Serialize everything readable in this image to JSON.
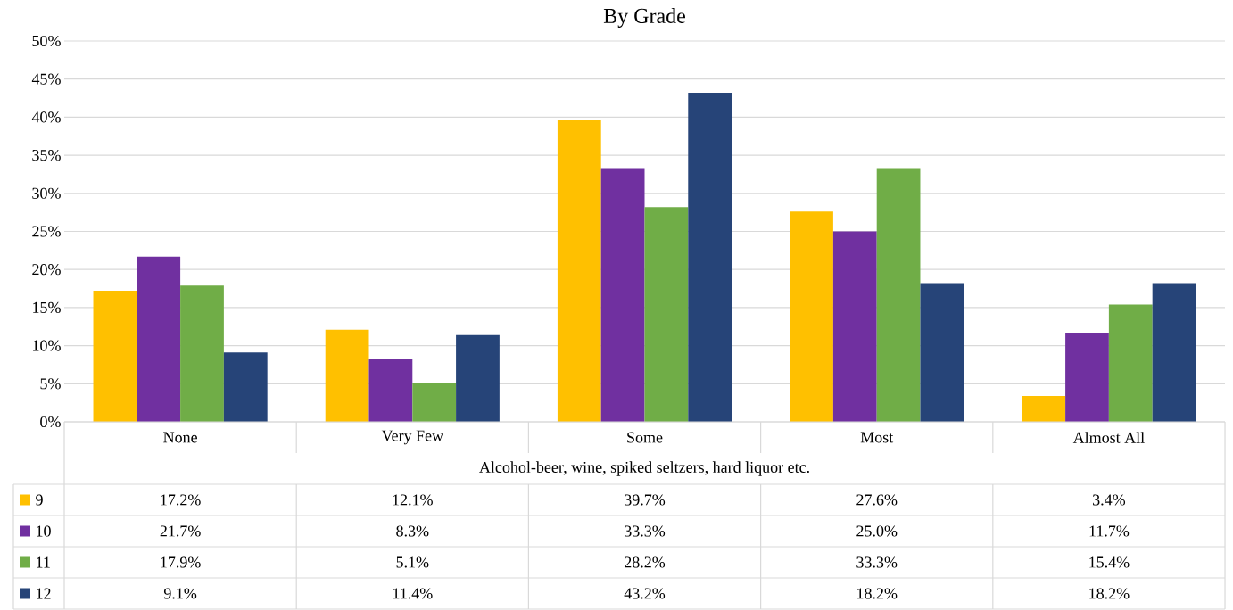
{
  "chart_data": {
    "type": "bar",
    "title": "By Grade",
    "xlabel": "Alcohol-beer, wine, spiked seltzers, hard liquor etc.",
    "categories": [
      "None",
      "Very Few",
      "Some",
      "Most",
      "Almost All"
    ],
    "series": [
      {
        "name": "9",
        "color": "#ffc000",
        "values": [
          17.2,
          12.1,
          39.7,
          27.6,
          3.4
        ],
        "value_labels": [
          "17.2%",
          "12.1%",
          "39.7%",
          "27.6%",
          "3.4%"
        ]
      },
      {
        "name": "10",
        "color": "#7030a0",
        "values": [
          21.7,
          8.3,
          33.3,
          25.0,
          11.7
        ],
        "value_labels": [
          "21.7%",
          "8.3%",
          "33.3%",
          "25.0%",
          "11.7%"
        ]
      },
      {
        "name": "11",
        "color": "#70ad47",
        "values": [
          17.9,
          5.1,
          28.2,
          33.3,
          15.4
        ],
        "value_labels": [
          "17.9%",
          "5.1%",
          "28.2%",
          "33.3%",
          "15.4%"
        ]
      },
      {
        "name": "12",
        "color": "#264478",
        "values": [
          9.1,
          11.4,
          43.2,
          18.2,
          18.2
        ],
        "value_labels": [
          "9.1%",
          "11.4%",
          "43.2%",
          "18.2%",
          "18.2%"
        ]
      }
    ],
    "ylim": [
      0,
      50
    ],
    "yticks": [
      {
        "value": 0,
        "label": "0%"
      },
      {
        "value": 5,
        "label": "5%"
      },
      {
        "value": 10,
        "label": "10%"
      },
      {
        "value": 15,
        "label": "15%"
      },
      {
        "value": 20,
        "label": "20%"
      },
      {
        "value": 25,
        "label": "25%"
      },
      {
        "value": 30,
        "label": "30%"
      },
      {
        "value": 35,
        "label": "35%"
      },
      {
        "value": 40,
        "label": "40%"
      },
      {
        "value": 45,
        "label": "45%"
      },
      {
        "value": 50,
        "label": "50%"
      }
    ],
    "grid": "y",
    "legend": "bottom"
  }
}
